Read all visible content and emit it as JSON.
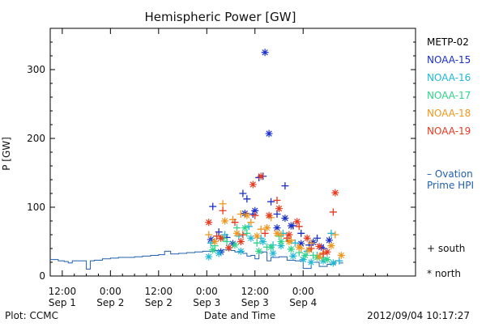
{
  "chart_data": {
    "type": "scatter",
    "title": "Hemispheric Power [GW]",
    "xlabel": "Date and Time",
    "ylabel": "P [GW]",
    "x_unit": "hours",
    "xlim": [
      -15,
      76
    ],
    "ylim": [
      0,
      360
    ],
    "y_ticks": [
      0,
      100,
      200,
      300
    ],
    "x_ticks": [
      {
        "x": -12,
        "line1": "12:00",
        "line2": "Sep 1"
      },
      {
        "x": 0,
        "line1": "0:00",
        "line2": "Sep 2"
      },
      {
        "x": 12,
        "line1": "12:00",
        "line2": "Sep 2"
      },
      {
        "x": 24,
        "line1": "0:00",
        "line2": "Sep 3"
      },
      {
        "x": 36,
        "line1": "12:00",
        "line2": "Sep 3"
      },
      {
        "x": 48,
        "line1": "0:00",
        "line2": "Sep 4"
      }
    ],
    "legend": {
      "placement": "right",
      "satellites": [
        {
          "name": "METP-02",
          "color": "#000000"
        },
        {
          "name": "NOAA-15",
          "color": "#1a2fc9"
        },
        {
          "name": "NOAA-16",
          "color": "#21b8d6"
        },
        {
          "name": "NOAA-17",
          "color": "#2fd48a"
        },
        {
          "name": "NOAA-18",
          "color": "#f0961e"
        },
        {
          "name": "NOAA-19",
          "color": "#e8391f"
        }
      ],
      "ovation_line1": "– Ovation",
      "ovation_line2": "Prime HPI",
      "ovation_color": "#1f5fb0",
      "south_label": "+ south",
      "north_label": "* north"
    },
    "ovation_series": {
      "name": "Ovation Prime HPI",
      "x": [
        -15,
        -13,
        -11.5,
        -10.5,
        -9.5,
        -8,
        -6,
        -5,
        -4,
        -2,
        0,
        2,
        4,
        6,
        8,
        10,
        12,
        13.5,
        15,
        17,
        19,
        21,
        23,
        24,
        26,
        28,
        30,
        31,
        33,
        34,
        35,
        36,
        37,
        38,
        39,
        40,
        42,
        44,
        46,
        48,
        50,
        52,
        54,
        56,
        57
      ],
      "values": [
        24,
        22,
        21,
        19,
        22,
        22,
        10,
        22,
        23,
        25,
        26,
        27,
        27,
        28,
        29,
        30,
        31,
        36,
        32,
        33,
        34,
        35,
        36,
        36,
        37,
        38,
        37,
        35,
        33,
        29,
        30,
        25,
        34,
        35,
        22,
        27,
        28,
        23,
        22,
        11,
        20,
        14,
        17,
        22,
        19
      ]
    },
    "series": [
      {
        "satellite": "NOAA-15",
        "marker": "south",
        "x": [
          25.5,
          27,
          29,
          33,
          34,
          35.5,
          37,
          38,
          40,
          41.5,
          43.5,
          45.5,
          47.5,
          49.5,
          51.5,
          53
        ],
        "values": [
          101,
          64,
          56,
          120,
          112,
          90,
          143,
          145,
          108,
          90,
          131,
          73,
          62,
          45,
          55,
          40
        ]
      },
      {
        "satellite": "NOAA-15",
        "marker": "north",
        "x": [
          25,
          27.5,
          30.5,
          33.5,
          36,
          38.5,
          39.5,
          41.5,
          43.5,
          45,
          47.5,
          50.5,
          52.5,
          54.5
        ],
        "values": [
          53,
          35,
          47,
          91,
          95,
          325,
          207,
          70,
          84,
          73,
          47,
          49,
          42,
          52
        ]
      },
      {
        "satellite": "NOAA-16",
        "marker": "south",
        "x": [
          25,
          28.5,
          32,
          34.5,
          37.5,
          40.5,
          43,
          46,
          49,
          51.5,
          55,
          57
        ],
        "values": [
          48,
          60,
          58,
          72,
          55,
          45,
          62,
          48,
          36,
          30,
          62,
          22
        ]
      },
      {
        "satellite": "NOAA-16",
        "marker": "north",
        "x": [
          24.5,
          27,
          29.5,
          32.5,
          35,
          38,
          40.5,
          42.5,
          45.5,
          48,
          50,
          53,
          55.5
        ],
        "values": [
          28,
          33,
          41,
          36,
          55,
          50,
          33,
          44,
          29,
          24,
          20,
          22,
          19
        ]
      },
      {
        "satellite": "NOAA-17",
        "marker": "south",
        "x": [
          26,
          29,
          31.5,
          34,
          36.5,
          39,
          42,
          44.5,
          47,
          50.5,
          53
        ],
        "values": [
          44,
          50,
          70,
          62,
          48,
          42,
          58,
          52,
          34,
          30,
          26
        ]
      },
      {
        "satellite": "NOAA-17",
        "marker": "north",
        "x": [
          25.5,
          28,
          31,
          33.5,
          37,
          40,
          42.5,
          45,
          48.5,
          51.5,
          54
        ],
        "values": [
          38,
          55,
          45,
          70,
          36,
          42,
          50,
          39,
          30,
          27,
          24
        ]
      },
      {
        "satellite": "NOAA-18",
        "marker": "south",
        "x": [
          24.5,
          28,
          30.5,
          32.5,
          35,
          37.5,
          40,
          42.5,
          45,
          47.5,
          50,
          53,
          56
        ],
        "values": [
          60,
          105,
          82,
          90,
          78,
          68,
          85,
          60,
          52,
          40,
          48,
          34,
          60
        ]
      },
      {
        "satellite": "NOAA-18",
        "marker": "north",
        "x": [
          26,
          28.5,
          31.5,
          34,
          36.5,
          39,
          41.5,
          44.5,
          47,
          49.5,
          52,
          55,
          57.5
        ],
        "values": [
          50,
          80,
          62,
          88,
          58,
          70,
          62,
          50,
          42,
          38,
          28,
          44,
          30
        ]
      },
      {
        "satellite": "NOAA-19",
        "marker": "south",
        "x": [
          26.5,
          28,
          31,
          33,
          36,
          38.5,
          41.5,
          44,
          47,
          50,
          53,
          55.5
        ],
        "values": [
          58,
          95,
          78,
          60,
          88,
          62,
          110,
          55,
          72,
          40,
          32,
          93
        ]
      },
      {
        "satellite": "NOAA-19",
        "marker": "north",
        "x": [
          24.5,
          27.5,
          29.5,
          32.5,
          35.5,
          37.5,
          39.5,
          42,
          44.5,
          46.5,
          49,
          52,
          54,
          56
        ],
        "values": [
          78,
          55,
          41,
          50,
          133,
          145,
          88,
          98,
          60,
          79,
          55,
          43,
          35,
          121
        ]
      }
    ]
  },
  "footer": {
    "left": "Plot: CCMC",
    "timestamp": "2012/09/04 10:17:27"
  }
}
